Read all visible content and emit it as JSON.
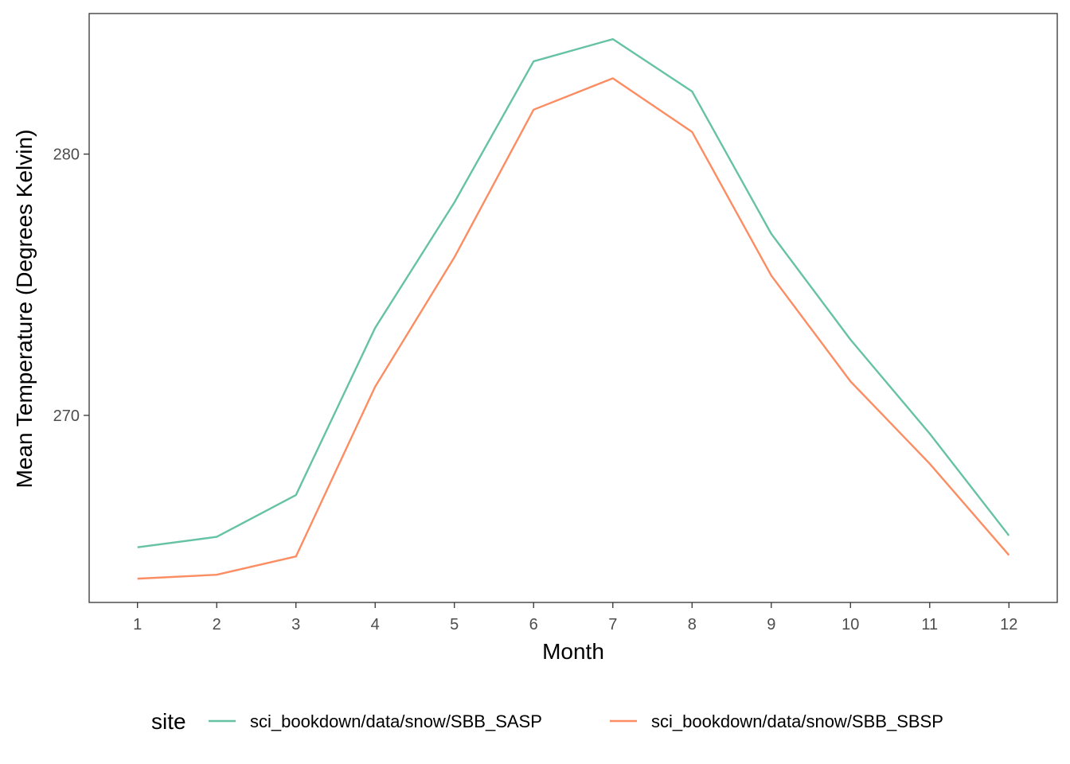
{
  "chart_data": {
    "type": "line",
    "title": "",
    "xlabel": "Month",
    "ylabel": "Mean Temperature (Degrees Kelvin)",
    "x": [
      1,
      2,
      3,
      4,
      5,
      6,
      7,
      8,
      9,
      10,
      11,
      12
    ],
    "x_ticks": [
      "1",
      "2",
      "3",
      "4",
      "5",
      "6",
      "7",
      "8",
      "9",
      "10",
      "11",
      "12"
    ],
    "y_ticks": [
      270,
      280
    ],
    "xlim": [
      0.39,
      12.61
    ],
    "ylim": [
      262.84,
      285.38
    ],
    "grid": false,
    "legend": {
      "title": "site",
      "position": "bottom"
    },
    "series": [
      {
        "name": "sci_bookdown/data/snow/SBB_SASP",
        "color": "#66C2A5",
        "values": [
          264.95,
          265.35,
          266.95,
          273.35,
          278.15,
          283.55,
          284.4,
          282.4,
          276.95,
          272.9,
          269.3,
          265.4
        ]
      },
      {
        "name": "sci_bookdown/data/snow/SBB_SBSP",
        "color": "#FC8D62",
        "values": [
          263.75,
          263.9,
          264.6,
          271.1,
          276.05,
          281.7,
          282.9,
          280.85,
          275.35,
          271.3,
          268.15,
          264.65
        ]
      }
    ]
  }
}
